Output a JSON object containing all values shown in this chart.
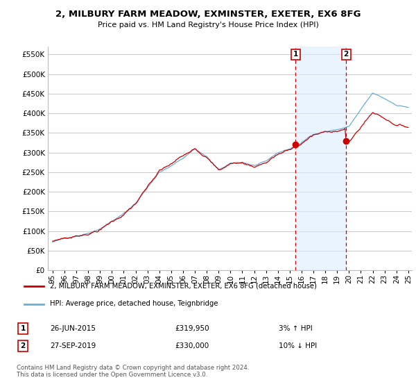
{
  "title": "2, MILBURY FARM MEADOW, EXMINSTER, EXETER, EX6 8FG",
  "subtitle": "Price paid vs. HM Land Registry's House Price Index (HPI)",
  "ylabel_ticks": [
    "£0",
    "£50K",
    "£100K",
    "£150K",
    "£200K",
    "£250K",
    "£300K",
    "£350K",
    "£400K",
    "£450K",
    "£500K",
    "£550K"
  ],
  "ytick_values": [
    0,
    50000,
    100000,
    150000,
    200000,
    250000,
    300000,
    350000,
    400000,
    450000,
    500000,
    550000
  ],
  "ylim": [
    0,
    570000
  ],
  "x_start_year": 1995,
  "x_end_year": 2025,
  "hpi_color": "#6baed6",
  "price_color": "#cc0000",
  "marker1_date": 2015.5,
  "marker2_date": 2019.75,
  "marker1_price": 319950,
  "marker2_price": 330000,
  "marker1_label": "1",
  "marker2_label": "2",
  "legend_label1": "2, MILBURY FARM MEADOW, EXMINSTER, EXETER, EX6 8FG (detached house)",
  "legend_label2": "HPI: Average price, detached house, Teignbridge",
  "note1_num": "1",
  "note1_date": "26-JUN-2015",
  "note1_price": "£319,950",
  "note1_hpi": "3% ↑ HPI",
  "note2_num": "2",
  "note2_date": "27-SEP-2019",
  "note2_price": "£330,000",
  "note2_hpi": "10% ↓ HPI",
  "footer": "Contains HM Land Registry data © Crown copyright and database right 2024.\nThis data is licensed under the Open Government Licence v3.0.",
  "background_color": "#ffffff",
  "plot_bg_color": "#ffffff",
  "grid_color": "#cccccc",
  "span_color": "#ddeeff",
  "span_alpha": 0.6
}
